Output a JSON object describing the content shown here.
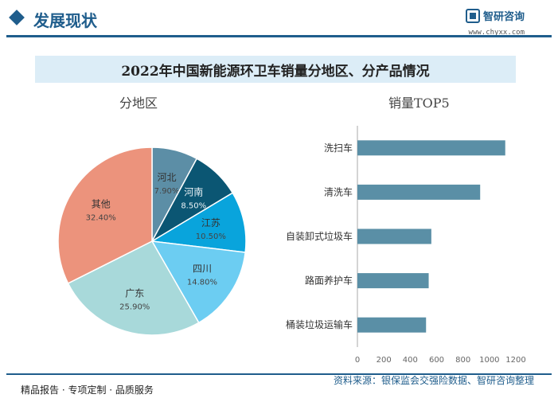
{
  "header": {
    "title": "发展现状",
    "logo_name": "智研咨询",
    "logo_url": "www.chyxx.com"
  },
  "banner": {
    "title": "2022年中国新能源环卫车销量分地区、分产品情况"
  },
  "colors": {
    "brand": "#1f5d8c",
    "bar": "#5a8fa6"
  },
  "chart_data": [
    {
      "type": "pie",
      "title": "分地区",
      "slices": [
        {
          "label": "河北",
          "value": 7.9,
          "display": "7.90%",
          "color": "#5c8ea6"
        },
        {
          "label": "河南",
          "value": 8.5,
          "display": "8.50%",
          "color": "#0b5673"
        },
        {
          "label": "江苏",
          "value": 10.5,
          "display": "10.50%",
          "color": "#09a4dc"
        },
        {
          "label": "四川",
          "value": 14.8,
          "display": "14.80%",
          "color": "#6ccdf2"
        },
        {
          "label": "广东",
          "value": 25.9,
          "display": "25.90%",
          "color": "#a8d9da"
        },
        {
          "label": "其他",
          "value": 32.4,
          "display": "32.40%",
          "color": "#ec937c"
        }
      ]
    },
    {
      "type": "bar",
      "orientation": "horizontal",
      "title": "销量TOP5",
      "categories": [
        "洗扫车",
        "清洗车",
        "自装卸式垃圾车",
        "路面养护车",
        "桶装垃圾运输车"
      ],
      "values": [
        1120,
        930,
        560,
        540,
        520
      ],
      "xlim": [
        0,
        1200
      ],
      "xticks": [
        0,
        200,
        400,
        600,
        800,
        1000,
        1200
      ]
    }
  ],
  "footer": {
    "left": "精品报告 · 专项定制 · 品质服务",
    "source": "资料来源：银保监会交强险数据、智研咨询整理"
  }
}
